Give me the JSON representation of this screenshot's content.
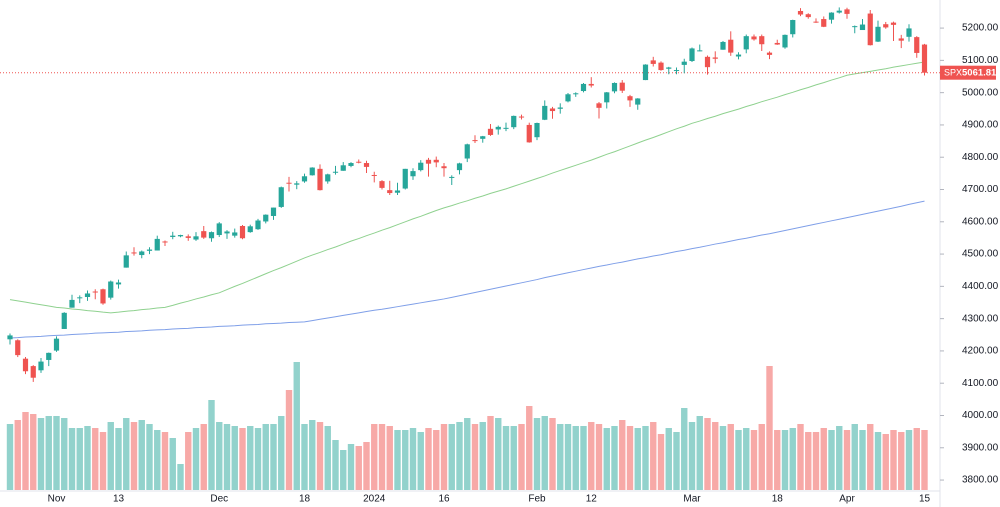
{
  "chart_data": {
    "type": "candlestick",
    "symbol": "SPX",
    "last_price": 5061.81,
    "up_color": "#26a69a",
    "down_color": "#ef5350",
    "categories": [
      null,
      null,
      null,
      null,
      null,
      null,
      "Nov",
      null,
      null,
      null,
      null,
      null,
      null,
      null,
      "13",
      null,
      null,
      null,
      null,
      null,
      null,
      null,
      null,
      null,
      null,
      null,
      null,
      "Dec",
      null,
      null,
      null,
      null,
      null,
      null,
      null,
      null,
      null,
      null,
      "18",
      null,
      null,
      null,
      null,
      null,
      null,
      null,
      null,
      "2024",
      null,
      null,
      null,
      null,
      null,
      null,
      null,
      null,
      "16",
      null,
      null,
      null,
      null,
      null,
      null,
      null,
      null,
      null,
      null,
      null,
      "Feb",
      null,
      null,
      null,
      null,
      null,
      null,
      "12",
      null,
      null,
      null,
      null,
      null,
      null,
      null,
      null,
      null,
      null,
      null,
      null,
      "Mar",
      null,
      null,
      null,
      null,
      null,
      null,
      null,
      null,
      null,
      null,
      "18",
      null,
      null,
      null,
      null,
      null,
      null,
      null,
      null,
      "Apr",
      null,
      null,
      null,
      null,
      null,
      null,
      null,
      null,
      null,
      "15"
    ],
    "open": [
      4236,
      4233,
      4176,
      4153,
      4140,
      4172,
      4201,
      4268,
      4334,
      4364,
      4367,
      4384,
      4391,
      4365,
      4406,
      4458,
      4505,
      4497,
      4510,
      4511,
      4539,
      4553,
      4555,
      4555,
      4545,
      4571,
      4549,
      4559,
      4564,
      4557,
      4587,
      4568,
      4577,
      4601,
      4618,
      4646,
      4721,
      4715,
      4725,
      4744,
      4764,
      4725,
      4754,
      4758,
      4773,
      4786,
      4782,
      4745,
      4726,
      4698,
      4690,
      4703,
      4741,
      4760,
      4792,
      4792,
      4772,
      4739,
      4760,
      4796,
      4853,
      4857,
      4888,
      4886,
      4888,
      4893,
      4926,
      4900,
      4862,
      4916,
      4951,
      4950,
      4973,
      4996,
      5005,
      5027,
      4967,
      4970,
      5004,
      5031,
      4989,
      4963,
      5039,
      5100,
      5093,
      5074,
      5068,
      5086,
      5098,
      5131,
      5111,
      5109,
      5133,
      5164,
      5112,
      5134,
      5174,
      5175,
      5124,
      5154,
      5140,
      5181,
      5253,
      5243,
      5220,
      5228,
      5226,
      5248,
      5258,
      5205,
      5194,
      5245,
      5158,
      5212,
      5217,
      5168,
      5173,
      5172,
      5149
    ],
    "high": [
      4254,
      4236,
      4181,
      4156,
      4178,
      4195,
      4245,
      4320,
      4374,
      4372,
      4387,
      4391,
      4393,
      4418,
      4421,
      4508,
      4521,
      4511,
      4521,
      4557,
      4542,
      4569,
      4560,
      4561,
      4568,
      4587,
      4570,
      4599,
      4574,
      4579,
      4590,
      4591,
      4609,
      4623,
      4644,
      4709,
      4739,
      4726,
      4749,
      4769,
      4778,
      4749,
      4773,
      4785,
      4785,
      4793,
      4789,
      4755,
      4729,
      4727,
      4721,
      4764,
      4766,
      4791,
      4798,
      4802,
      4782,
      4744,
      4783,
      4842,
      4868,
      4866,
      4903,
      4898,
      4907,
      4929,
      4932,
      4907,
      4907,
      4976,
      4956,
      4967,
      4999,
      5001,
      5030,
      5048,
      4971,
      5002,
      5032,
      5039,
      4993,
      4983,
      5088,
      5111,
      5097,
      5080,
      5078,
      5105,
      5140,
      5149,
      5115,
      5128,
      5160,
      5190,
      5125,
      5180,
      5180,
      5180,
      5128,
      5164,
      5180,
      5226,
      5262,
      5246,
      5230,
      5236,
      5249,
      5264,
      5263,
      5208,
      5228,
      5256,
      5223,
      5219,
      5220,
      5179,
      5212,
      5175,
      5151
    ],
    "low": [
      4220,
      4181,
      4128,
      4104,
      4132,
      4153,
      4197,
      4268,
      4334,
      4348,
      4355,
      4360,
      4343,
      4359,
      4393,
      4458,
      4495,
      4487,
      4500,
      4511,
      4525,
      4546,
      4552,
      4541,
      4541,
      4547,
      4538,
      4553,
      4547,
      4551,
      4546,
      4566,
      4575,
      4595,
      4606,
      4643,
      4694,
      4701,
      4721,
      4743,
      4697,
      4718,
      4746,
      4758,
      4769,
      4781,
      4751,
      4722,
      4700,
      4683,
      4683,
      4700,
      4730,
      4756,
      4740,
      4769,
      4740,
      4714,
      4747,
      4785,
      4844,
      4845,
      4866,
      4870,
      4881,
      4887,
      4917,
      4845,
      4853,
      4915,
      4919,
      4935,
      4970,
      4987,
      5001,
      5016,
      4920,
      4951,
      4998,
      4999,
      4956,
      4947,
      5039,
      5081,
      5068,
      5057,
      5057,
      5060,
      5095,
      5128,
      5056,
      5091,
      5133,
      5114,
      5103,
      5122,
      5161,
      5129,
      5104,
      5148,
      5136,
      5171,
      5237,
      5229,
      5216,
      5203,
      5214,
      5245,
      5229,
      5184,
      5194,
      5146,
      5157,
      5198,
      5160,
      5138,
      5158,
      5108,
      5053
    ],
    "close": [
      4248,
      4187,
      4137,
      4117,
      4167,
      4194,
      4238,
      4318,
      4358,
      4366,
      4378,
      4383,
      4347,
      4415,
      4412,
      4496,
      4503,
      4508,
      4514,
      4547,
      4538,
      4557,
      4559,
      4550,
      4555,
      4551,
      4568,
      4595,
      4570,
      4567,
      4549,
      4586,
      4604,
      4622,
      4644,
      4707,
      4720,
      4719,
      4741,
      4768,
      4698,
      4747,
      4755,
      4775,
      4782,
      4783,
      4770,
      4743,
      4705,
      4689,
      4697,
      4764,
      4757,
      4783,
      4780,
      4784,
      4766,
      4739,
      4781,
      4840,
      4850,
      4865,
      4869,
      4894,
      4891,
      4928,
      4925,
      4846,
      4906,
      4959,
      4943,
      4954,
      4995,
      4998,
      5027,
      5022,
      4953,
      5001,
      5030,
      5006,
      4976,
      4982,
      5087,
      5089,
      5070,
      5078,
      5070,
      5096,
      5137,
      5131,
      5079,
      5105,
      5157,
      5124,
      5118,
      5175,
      5165,
      5150,
      5117,
      5149,
      5179,
      5225,
      5242,
      5234,
      5218,
      5204,
      5248,
      5254,
      5244,
      5206,
      5211,
      5147,
      5204,
      5202,
      5210,
      5161,
      5199,
      5123,
      5061.81
    ],
    "volume": [
      3.3,
      3.5,
      3.9,
      3.8,
      3.6,
      3.7,
      3.7,
      3.6,
      3.1,
      3.1,
      3.2,
      3.1,
      2.9,
      3.4,
      3.1,
      3.6,
      3.4,
      3.5,
      3.3,
      3.0,
      2.9,
      2.6,
      1.3,
      2.9,
      3.1,
      3.3,
      4.5,
      3.4,
      3.3,
      3.2,
      3.1,
      3.2,
      3.1,
      3.3,
      3.3,
      3.7,
      5.0,
      6.4,
      3.3,
      3.5,
      3.4,
      3.2,
      2.5,
      2.0,
      2.3,
      2.2,
      2.4,
      3.3,
      3.3,
      3.2,
      3.0,
      3.0,
      3.1,
      2.9,
      3.1,
      3.0,
      3.3,
      3.3,
      3.4,
      3.6,
      3.3,
      3.4,
      3.7,
      3.6,
      3.2,
      3.2,
      3.3,
      4.2,
      3.6,
      3.7,
      3.6,
      3.3,
      3.3,
      3.2,
      3.2,
      3.4,
      3.3,
      3.1,
      3.2,
      3.5,
      3.2,
      3.1,
      3.2,
      3.4,
      2.8,
      3.1,
      2.9,
      4.1,
      3.4,
      3.7,
      3.6,
      3.4,
      3.2,
      3.3,
      3.0,
      3.1,
      3.0,
      3.3,
      6.2,
      3.0,
      3.0,
      3.1,
      3.3,
      2.9,
      2.9,
      3.1,
      3.0,
      3.2,
      3.0,
      3.3,
      3.0,
      3.3,
      2.9,
      2.8,
      3.0,
      2.9,
      3.0,
      3.1,
      3.0
    ],
    "moving_averages": [
      {
        "color": "#8fd18f",
        "values": [
          4359,
          4355,
          4351,
          4347,
          4343,
          4339,
          4335,
          4333,
          4330,
          4328,
          4325,
          4323,
          4320,
          4318,
          4320,
          4323,
          4325,
          4328,
          4330,
          4333,
          4335,
          4341,
          4348,
          4354,
          4361,
          4367,
          4374,
          4380,
          4390,
          4400,
          4409,
          4419,
          4429,
          4439,
          4449,
          4458,
          4468,
          4478,
          4488,
          4497,
          4505,
          4514,
          4522,
          4531,
          4540,
          4548,
          4557,
          4565,
          4574,
          4582,
          4591,
          4600,
          4609,
          4617,
          4626,
          4635,
          4643,
          4650,
          4658,
          4665,
          4673,
          4680,
          4688,
          4695,
          4702,
          4710,
          4718,
          4726,
          4734,
          4742,
          4751,
          4759,
          4767,
          4775,
          4783,
          4791,
          4800,
          4809,
          4817,
          4826,
          4835,
          4844,
          4853,
          4861,
          4870,
          4879,
          4888,
          4896,
          4905,
          4912,
          4920,
          4927,
          4935,
          4942,
          4949,
          4957,
          4964,
          4972,
          4979,
          4986,
          4994,
          5001,
          5009,
          5016,
          5024,
          5031,
          5039,
          5046,
          5054,
          5058,
          5062,
          5066,
          5070,
          5074,
          5079,
          5083,
          5087,
          5091,
          5095
        ]
      },
      {
        "color": "#7f9fe8",
        "values": [
          4240,
          4241,
          4243,
          4244,
          4245,
          4247,
          4248,
          4249,
          4251,
          4252,
          4253,
          4255,
          4256,
          4257,
          4258,
          4260,
          4261,
          4262,
          4264,
          4265,
          4266,
          4268,
          4269,
          4270,
          4272,
          4273,
          4274,
          4276,
          4277,
          4278,
          4280,
          4281,
          4282,
          4284,
          4285,
          4286,
          4288,
          4289,
          4290,
          4294,
          4298,
          4302,
          4306,
          4310,
          4314,
          4318,
          4322,
          4326,
          4329,
          4333,
          4337,
          4341,
          4345,
          4349,
          4353,
          4357,
          4361,
          4366,
          4371,
          4376,
          4381,
          4386,
          4391,
          4396,
          4401,
          4406,
          4411,
          4416,
          4421,
          4427,
          4432,
          4437,
          4442,
          4447,
          4452,
          4457,
          4462,
          4466,
          4471,
          4475,
          4480,
          4485,
          4489,
          4494,
          4498,
          4503,
          4508,
          4512,
          4517,
          4521,
          4526,
          4531,
          4535,
          4540,
          4545,
          4549,
          4554,
          4559,
          4563,
          4568,
          4573,
          4578,
          4583,
          4588,
          4593,
          4598,
          4603,
          4608,
          4613,
          4618,
          4623,
          4628,
          4633,
          4638,
          4643,
          4648,
          4654,
          4659,
          4664
        ]
      }
    ],
    "ylim": [
      3763,
      5287
    ],
    "yticks": [
      {
        "value": 3800,
        "label": "3800.00"
      },
      {
        "value": 3900,
        "label": "3900.00"
      },
      {
        "value": 4000,
        "label": "4000.00"
      },
      {
        "value": 4100,
        "label": "4100.00"
      },
      {
        "value": 4200,
        "label": "4200.00"
      },
      {
        "value": 4300,
        "label": "4300.00"
      },
      {
        "value": 4400,
        "label": "4400.00"
      },
      {
        "value": 4500,
        "label": "4500.00"
      },
      {
        "value": 4600,
        "label": "4600.00"
      },
      {
        "value": 4700,
        "label": "4700.00"
      },
      {
        "value": 4800,
        "label": "4800.00"
      },
      {
        "value": 4900,
        "label": "4900.00"
      },
      {
        "value": 5000,
        "label": "5000.00"
      },
      {
        "value": 5100,
        "label": "5100.00"
      },
      {
        "value": 5200,
        "label": "5200.00"
      }
    ],
    "grid": false
  }
}
